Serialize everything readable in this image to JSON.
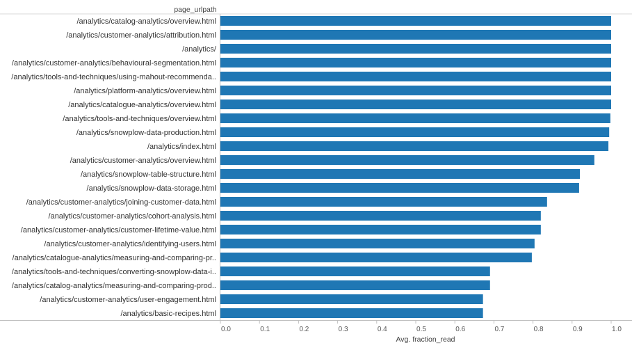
{
  "chart_data": {
    "type": "bar",
    "orientation": "horizontal",
    "row_header": "page_urlpath",
    "xlabel": "Avg. fraction_read",
    "xlim": [
      0,
      1.05
    ],
    "xticks": [
      "0.0",
      "0.1",
      "0.2",
      "0.3",
      "0.4",
      "0.5",
      "0.6",
      "0.7",
      "0.8",
      "0.9",
      "1.0"
    ],
    "bar_color": "#1f77b4",
    "grid": false,
    "categories": [
      "/analytics/catalog-analytics/overview.html",
      "/analytics/customer-analytics/attribution.html",
      "/analytics/",
      "/analytics/customer-analytics/behavioural-segmentation.html",
      "/analytics/tools-and-techniques/using-mahout-recommenda..",
      "/analytics/platform-analytics/overview.html",
      "/analytics/catalogue-analytics/overview.html",
      "/analytics/tools-and-techniques/overview.html",
      "/analytics/snowplow-data-production.html",
      "/analytics/index.html",
      "/analytics/customer-analytics/overview.html",
      "/analytics/snowplow-table-structure.html",
      "/analytics/snowplow-data-storage.html",
      "/analytics/customer-analytics/joining-customer-data.html",
      "/analytics/customer-analytics/cohort-analysis.html",
      "/analytics/customer-analytics/customer-lifetime-value.html",
      "/analytics/customer-analytics/identifying-users.html",
      "/analytics/catalogue-analytics/measuring-and-comparing-pr..",
      "/analytics/tools-and-techniques/converting-snowplow-data-i..",
      "/analytics/catalog-analytics/measuring-and-comparing-prod..",
      "/analytics/customer-analytics/user-engagement.html",
      "/analytics/basic-recipes.html"
    ],
    "values": [
      1.0,
      1.0,
      1.0,
      1.0,
      1.0,
      1.0,
      1.0,
      0.998,
      0.995,
      0.993,
      0.957,
      0.92,
      0.918,
      0.836,
      0.82,
      0.82,
      0.804,
      0.797,
      0.69,
      0.69,
      0.672,
      0.672
    ]
  }
}
